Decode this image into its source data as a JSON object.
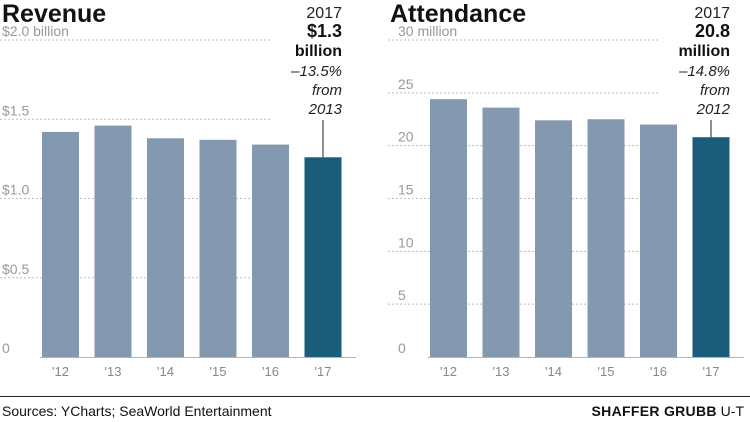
{
  "footer": {
    "source": "Sources: YCharts; SeaWorld Entertainment",
    "credit_name": "SHAFFER GRUBB",
    "credit_org": "U-T"
  },
  "colors": {
    "bar": "#8499b0",
    "highlight": "#1a5d7a"
  },
  "chart_data": [
    {
      "type": "bar",
      "title": "Revenue",
      "categories": [
        "'12",
        "'13",
        "'14",
        "'15",
        "'16",
        "'17"
      ],
      "values": [
        1.42,
        1.46,
        1.38,
        1.37,
        1.34,
        1.26
      ],
      "ylim": [
        0,
        2.0
      ],
      "yticks": [
        0,
        0.5,
        1.0,
        1.5,
        2.0
      ],
      "ytick_labels": [
        "0",
        "$0.5",
        "$1.0",
        "$1.5",
        "$2.0 billion"
      ],
      "highlight_index": 5,
      "annotation": {
        "year": "2017",
        "value": "$1.3",
        "unit": "billion",
        "change": "–13.5%",
        "from": "from",
        "base_year": "2013"
      },
      "grid": true
    },
    {
      "type": "bar",
      "title": "Attendance",
      "categories": [
        "'12",
        "'13",
        "'14",
        "'15",
        "'16",
        "'17"
      ],
      "values": [
        24.4,
        23.6,
        22.4,
        22.5,
        22.0,
        20.8
      ],
      "ylim": [
        0,
        30
      ],
      "yticks": [
        0,
        5,
        10,
        15,
        20,
        25,
        30
      ],
      "ytick_labels": [
        "0",
        "5",
        "10",
        "15",
        "20",
        "25",
        "30 million"
      ],
      "highlight_index": 5,
      "annotation": {
        "year": "2017",
        "value": "20.8",
        "unit": "million",
        "change": "–14.8%",
        "from": "from",
        "base_year": "2012"
      },
      "grid": true
    }
  ]
}
